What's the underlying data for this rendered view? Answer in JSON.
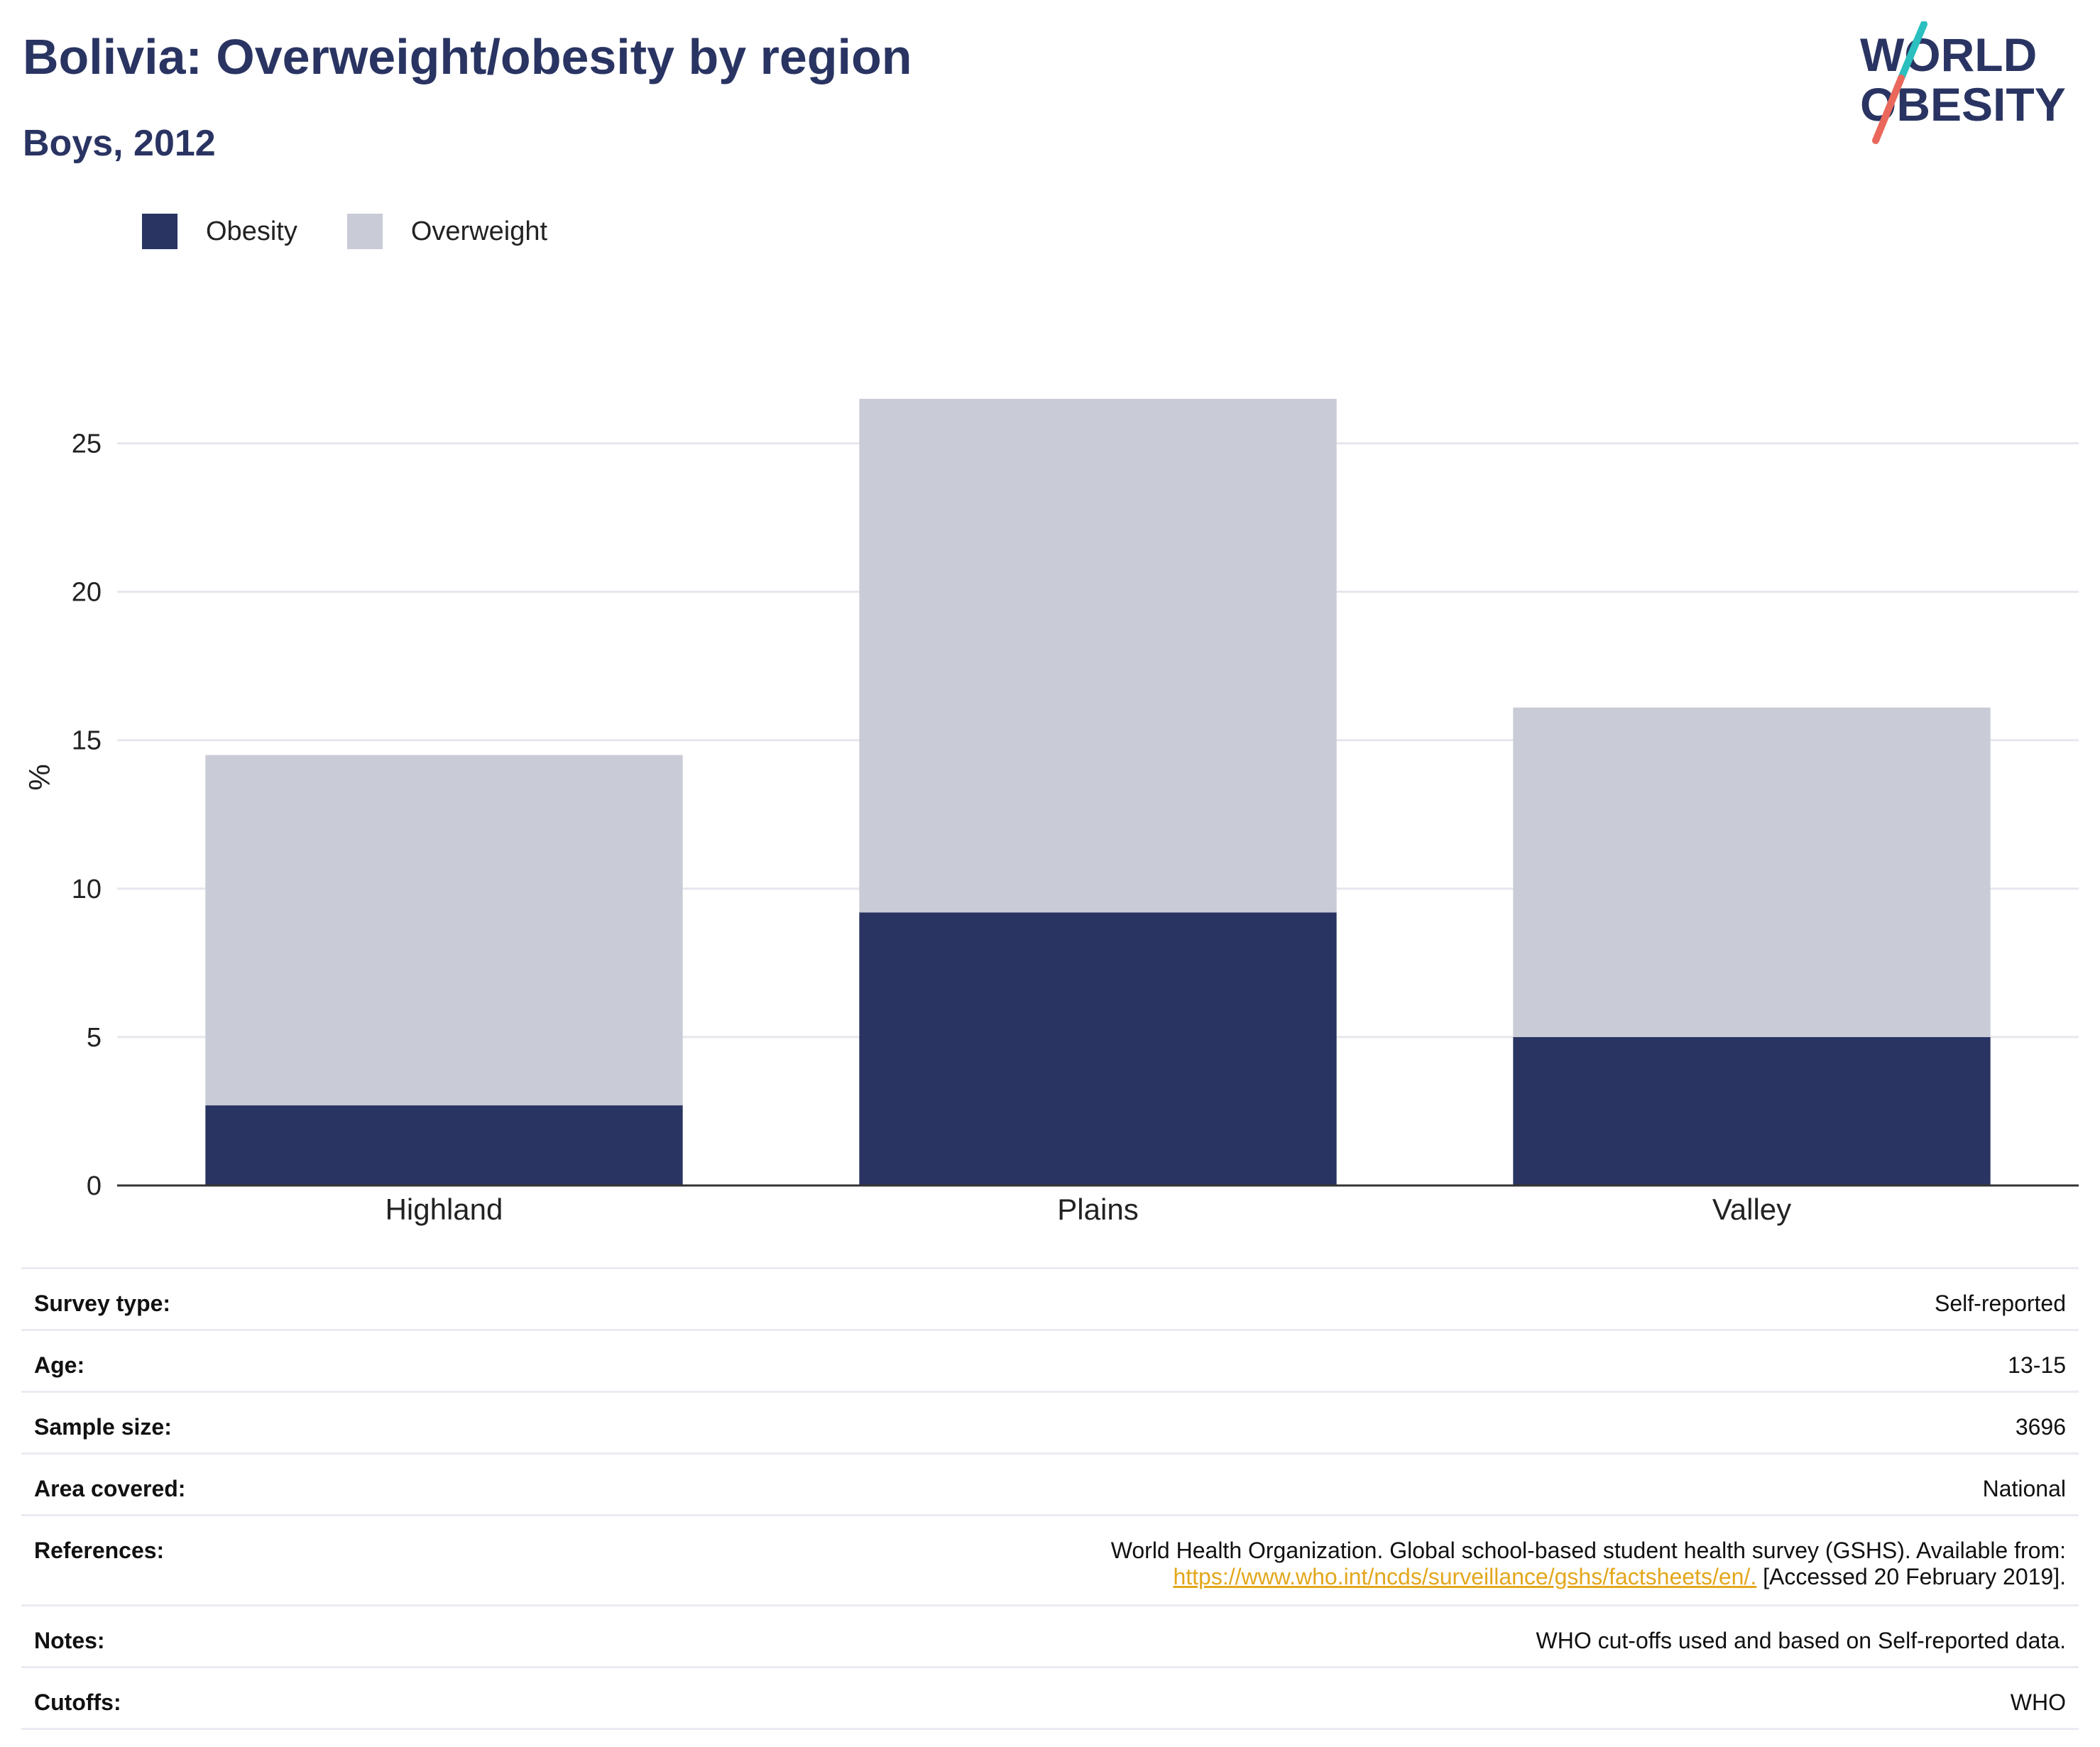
{
  "header": {
    "title": "Bolivia: Overweight/obesity by region",
    "subtitle": "Boys, 2012"
  },
  "logo": {
    "line1": "WORLD",
    "line2": "OBESITY",
    "colors": {
      "text": "#293462",
      "slash_top": "#2bbfbf",
      "slash_bottom": "#e9685b"
    }
  },
  "legend": [
    {
      "label": "Obesity",
      "color": "#293462"
    },
    {
      "label": "Overweight",
      "color": "#c9cbd6"
    }
  ],
  "chart_data": {
    "type": "bar",
    "stacked": true,
    "categories": [
      "Highland",
      "Plains",
      "Valley"
    ],
    "series": [
      {
        "name": "Obesity",
        "values": [
          2.7,
          9.2,
          5.0
        ],
        "color": "#293462"
      },
      {
        "name": "Overweight",
        "values": [
          11.8,
          17.3,
          11.1
        ],
        "color": "#c9cbd6"
      }
    ],
    "ylabel": "%",
    "yticks": [
      0,
      5,
      10,
      15,
      20,
      25
    ],
    "ylim": [
      0,
      27.5
    ],
    "grid": true,
    "legend_position": "top-left"
  },
  "info": {
    "survey_type": {
      "label": "Survey type:",
      "value": "Self-reported"
    },
    "age": {
      "label": "Age:",
      "value": "13-15"
    },
    "sample_size": {
      "label": "Sample size:",
      "value": "3696"
    },
    "area_covered": {
      "label": "Area covered:",
      "value": "National"
    },
    "references": {
      "label": "References:",
      "text_before": "World Health Organization. Global school-based student health survey (GSHS). Available from:",
      "link": "https://www.who.int/ncds/surveillance/gshs/factsheets/en/.",
      "text_after": " [Accessed 20 February 2019]."
    },
    "notes": {
      "label": "Notes:",
      "value": "WHO cut-offs used and based on Self-reported data."
    },
    "cutoffs": {
      "label": "Cutoffs:",
      "value": "WHO"
    }
  }
}
